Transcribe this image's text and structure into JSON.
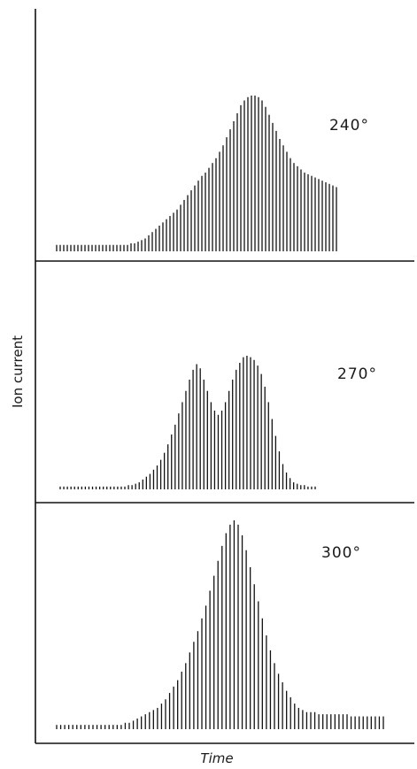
{
  "chart_data": {
    "type": "bar",
    "xlabel": "Time",
    "ylabel": "Ion current",
    "grid": false,
    "panels": [
      {
        "name": "240°",
        "label": "240°",
        "values": [
          4,
          4,
          4,
          4,
          4,
          4,
          4,
          4,
          4,
          4,
          4,
          4,
          4,
          4,
          4,
          4,
          4,
          4,
          4,
          4,
          4,
          5,
          5,
          6,
          7,
          8,
          10,
          12,
          14,
          16,
          18,
          20,
          22,
          24,
          26,
          29,
          32,
          35,
          38,
          41,
          44,
          47,
          49,
          52,
          55,
          58,
          62,
          66,
          71,
          76,
          81,
          86,
          91,
          94,
          96,
          97,
          97,
          96,
          94,
          90,
          85,
          80,
          75,
          70,
          66,
          62,
          58,
          55,
          53,
          51,
          49,
          48,
          47,
          46,
          45,
          44,
          43,
          42,
          41,
          40
        ]
      },
      {
        "name": "270°",
        "label": "270°",
        "values": [
          2,
          2,
          2,
          2,
          2,
          2,
          2,
          2,
          2,
          2,
          2,
          2,
          2,
          2,
          2,
          2,
          2,
          2,
          2,
          3,
          3,
          4,
          5,
          7,
          9,
          11,
          14,
          17,
          21,
          26,
          32,
          39,
          46,
          54,
          62,
          70,
          78,
          85,
          89,
          86,
          78,
          70,
          62,
          56,
          53,
          56,
          62,
          70,
          78,
          85,
          90,
          94,
          95,
          94,
          92,
          88,
          82,
          73,
          62,
          50,
          38,
          27,
          18,
          12,
          8,
          5,
          4,
          3,
          3,
          2,
          2,
          2
        ]
      },
      {
        "name": "300°",
        "label": "300°",
        "values": [
          2,
          2,
          2,
          2,
          2,
          2,
          2,
          2,
          2,
          2,
          2,
          2,
          2,
          2,
          2,
          2,
          2,
          3,
          3,
          4,
          5,
          6,
          7,
          8,
          9,
          10,
          12,
          14,
          17,
          20,
          23,
          27,
          31,
          36,
          41,
          46,
          52,
          58,
          65,
          72,
          79,
          86,
          92,
          96,
          98,
          96,
          91,
          84,
          76,
          68,
          60,
          52,
          44,
          37,
          31,
          26,
          22,
          18,
          15,
          12,
          10,
          9,
          8,
          8,
          8,
          7,
          7,
          7,
          7,
          7,
          7,
          7,
          7,
          6,
          6,
          6,
          6,
          6,
          6,
          6,
          6,
          6
        ]
      }
    ]
  }
}
